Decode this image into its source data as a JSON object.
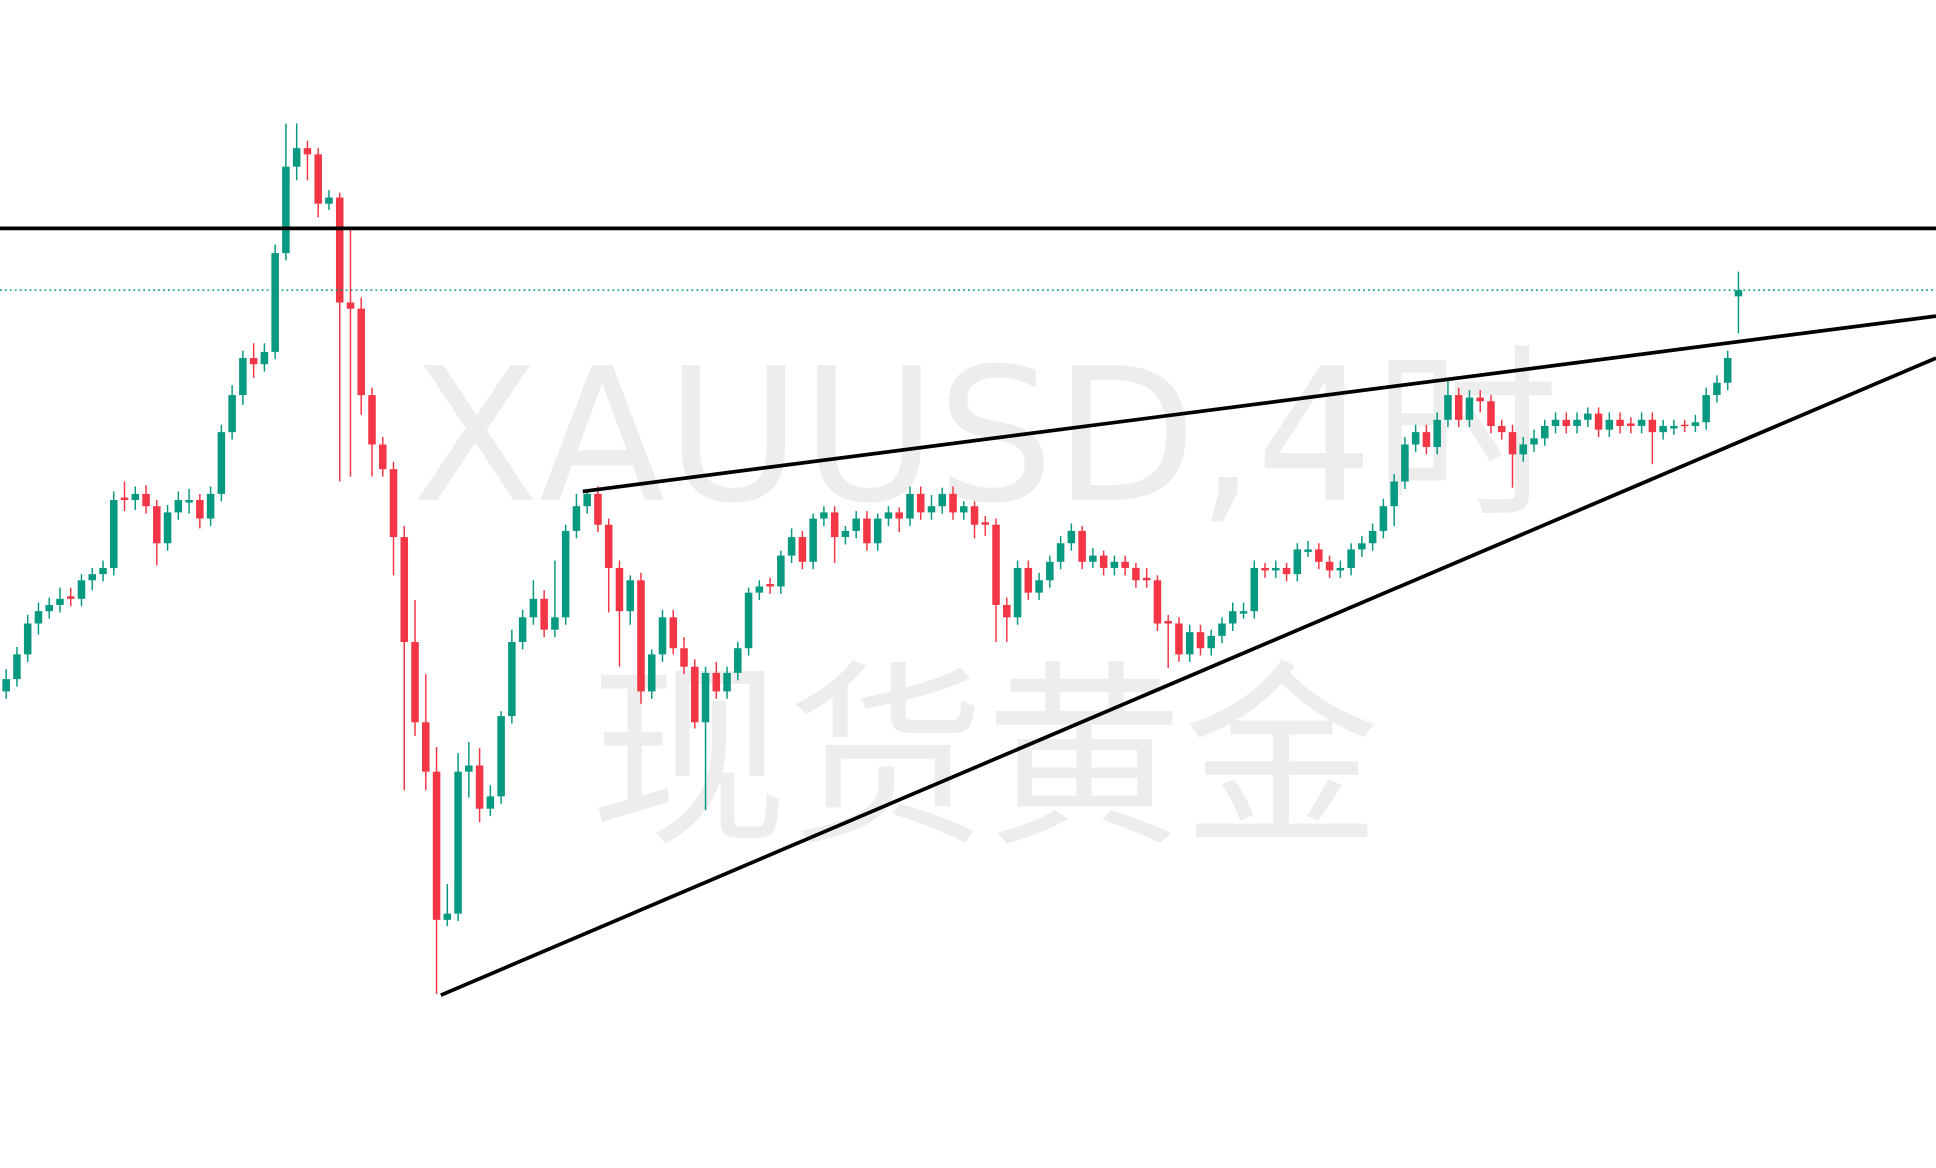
{
  "watermark": {
    "symbol": "XAUUSD,4时",
    "name": "现货黄金"
  },
  "chart_data": {
    "type": "candlestick",
    "ylim": [
      0,
      946
    ],
    "up_color": "#089981",
    "down_color": "#f23645",
    "ohlc": [
      [
        386,
        404,
        380,
        396
      ],
      [
        396,
        422,
        390,
        416
      ],
      [
        416,
        448,
        410,
        441
      ],
      [
        441,
        458,
        432,
        451
      ],
      [
        451,
        462,
        445,
        456
      ],
      [
        456,
        470,
        450,
        461
      ],
      [
        463,
        470,
        455,
        461
      ],
      [
        461,
        481,
        455,
        476
      ],
      [
        476,
        486,
        468,
        481
      ],
      [
        481,
        492,
        475,
        486
      ],
      [
        486,
        548,
        480,
        541
      ],
      [
        543,
        556,
        532,
        541
      ],
      [
        541,
        552,
        533,
        546
      ],
      [
        546,
        553,
        530,
        536
      ],
      [
        536,
        541,
        488,
        506
      ],
      [
        506,
        537,
        500,
        531
      ],
      [
        531,
        548,
        525,
        541
      ],
      [
        539,
        550,
        530,
        541
      ],
      [
        541,
        546,
        518,
        526
      ],
      [
        526,
        552,
        520,
        546
      ],
      [
        546,
        602,
        540,
        596
      ],
      [
        596,
        634,
        590,
        626
      ],
      [
        626,
        662,
        618,
        656
      ],
      [
        656,
        668,
        640,
        651
      ],
      [
        651,
        668,
        645,
        661
      ],
      [
        661,
        748,
        655,
        741
      ],
      [
        741,
        846,
        735,
        811
      ],
      [
        811,
        846,
        800,
        826
      ],
      [
        826,
        832,
        800,
        821
      ],
      [
        821,
        826,
        770,
        781
      ],
      [
        781,
        792,
        776,
        786
      ],
      [
        786,
        790,
        556,
        701
      ],
      [
        701,
        760,
        560,
        696
      ],
      [
        696,
        705,
        610,
        626
      ],
      [
        626,
        632,
        560,
        586
      ],
      [
        586,
        592,
        560,
        566
      ],
      [
        566,
        572,
        480,
        511
      ],
      [
        511,
        520,
        306,
        426
      ],
      [
        426,
        460,
        350,
        361
      ],
      [
        361,
        400,
        306,
        321
      ],
      [
        321,
        341,
        141,
        201
      ],
      [
        201,
        230,
        196,
        206
      ],
      [
        206,
        336,
        200,
        321
      ],
      [
        321,
        345,
        300,
        326
      ],
      [
        326,
        340,
        280,
        291
      ],
      [
        291,
        310,
        285,
        301
      ],
      [
        301,
        370,
        295,
        366
      ],
      [
        366,
        436,
        360,
        426
      ],
      [
        426,
        452,
        420,
        446
      ],
      [
        446,
        476,
        440,
        461
      ],
      [
        461,
        468,
        430,
        436
      ],
      [
        436,
        492,
        430,
        446
      ],
      [
        446,
        521,
        440,
        516
      ],
      [
        516,
        546,
        510,
        536
      ],
      [
        536,
        550,
        530,
        546
      ],
      [
        546,
        552,
        515,
        521
      ],
      [
        521,
        526,
        450,
        486
      ],
      [
        486,
        492,
        406,
        451
      ],
      [
        451,
        480,
        440,
        476
      ],
      [
        476,
        482,
        376,
        386
      ],
      [
        386,
        420,
        380,
        416
      ],
      [
        416,
        452,
        410,
        446
      ],
      [
        446,
        452,
        416,
        421
      ],
      [
        421,
        430,
        400,
        406
      ],
      [
        406,
        412,
        356,
        361
      ],
      [
        361,
        406,
        290,
        401
      ],
      [
        401,
        410,
        380,
        386
      ],
      [
        386,
        406,
        380,
        401
      ],
      [
        401,
        426,
        395,
        421
      ],
      [
        421,
        470,
        415,
        466
      ],
      [
        466,
        476,
        460,
        471
      ],
      [
        473,
        478,
        465,
        471
      ],
      [
        471,
        500,
        465,
        496
      ],
      [
        496,
        518,
        490,
        511
      ],
      [
        511,
        516,
        485,
        491
      ],
      [
        491,
        530,
        485,
        526
      ],
      [
        526,
        536,
        520,
        531
      ],
      [
        531,
        536,
        490,
        511
      ],
      [
        511,
        520,
        505,
        516
      ],
      [
        516,
        532,
        510,
        526
      ],
      [
        526,
        532,
        500,
        506
      ],
      [
        506,
        530,
        500,
        526
      ],
      [
        526,
        536,
        520,
        531
      ],
      [
        531,
        535,
        515,
        526
      ],
      [
        526,
        552,
        520,
        546
      ],
      [
        546,
        552,
        525,
        531
      ],
      [
        531,
        545,
        525,
        536
      ],
      [
        536,
        551,
        530,
        546
      ],
      [
        546,
        552,
        525,
        531
      ],
      [
        531,
        540,
        525,
        536
      ],
      [
        536,
        540,
        510,
        521
      ],
      [
        523,
        528,
        512,
        521
      ],
      [
        521,
        526,
        426,
        456
      ],
      [
        456,
        462,
        426,
        446
      ],
      [
        446,
        492,
        440,
        486
      ],
      [
        486,
        492,
        460,
        466
      ],
      [
        466,
        482,
        460,
        476
      ],
      [
        476,
        496,
        470,
        491
      ],
      [
        491,
        512,
        485,
        506
      ],
      [
        506,
        522,
        500,
        516
      ],
      [
        516,
        520,
        485,
        491
      ],
      [
        491,
        502,
        486,
        496
      ],
      [
        496,
        500,
        480,
        486
      ],
      [
        486,
        496,
        480,
        491
      ],
      [
        491,
        496,
        480,
        486
      ],
      [
        486,
        490,
        470,
        476
      ],
      [
        478,
        486,
        470,
        476
      ],
      [
        476,
        480,
        435,
        441
      ],
      [
        443,
        448,
        405,
        441
      ],
      [
        441,
        446,
        410,
        416
      ],
      [
        416,
        440,
        410,
        434
      ],
      [
        434,
        440,
        415,
        421
      ],
      [
        421,
        436,
        415,
        431
      ],
      [
        431,
        446,
        425,
        441
      ],
      [
        441,
        458,
        435,
        451
      ],
      [
        449,
        458,
        445,
        451
      ],
      [
        451,
        492,
        445,
        486
      ],
      [
        486,
        490,
        478,
        484
      ],
      [
        484,
        492,
        478,
        486
      ],
      [
        486,
        490,
        475,
        481
      ],
      [
        481,
        506,
        475,
        501
      ],
      [
        499,
        508,
        495,
        501
      ],
      [
        501,
        506,
        485,
        491
      ],
      [
        491,
        496,
        478,
        484
      ],
      [
        484,
        492,
        478,
        486
      ],
      [
        486,
        506,
        480,
        501
      ],
      [
        501,
        512,
        495,
        506
      ],
      [
        506,
        522,
        500,
        516
      ],
      [
        516,
        542,
        510,
        536
      ],
      [
        536,
        562,
        520,
        556
      ],
      [
        556,
        592,
        550,
        586
      ],
      [
        586,
        602,
        580,
        596
      ],
      [
        596,
        602,
        578,
        584
      ],
      [
        584,
        612,
        578,
        606
      ],
      [
        606,
        640,
        600,
        626
      ],
      [
        626,
        632,
        600,
        606
      ],
      [
        606,
        630,
        600,
        624
      ],
      [
        624,
        630,
        612,
        621
      ],
      [
        621,
        626,
        595,
        601
      ],
      [
        601,
        606,
        590,
        596
      ],
      [
        596,
        602,
        551,
        578
      ],
      [
        578,
        592,
        572,
        586
      ],
      [
        586,
        598,
        580,
        591
      ],
      [
        591,
        606,
        585,
        601
      ],
      [
        601,
        612,
        595,
        606
      ],
      [
        606,
        612,
        595,
        601
      ],
      [
        601,
        612,
        595,
        606
      ],
      [
        606,
        616,
        600,
        611
      ],
      [
        611,
        616,
        592,
        598
      ],
      [
        598,
        612,
        592,
        606
      ],
      [
        606,
        612,
        595,
        601
      ],
      [
        603,
        608,
        595,
        601
      ],
      [
        601,
        612,
        595,
        606
      ],
      [
        606,
        612,
        570,
        596
      ],
      [
        596,
        606,
        590,
        601
      ],
      [
        599,
        606,
        594,
        601
      ],
      [
        602,
        606,
        596,
        601
      ],
      [
        601,
        610,
        596,
        604
      ],
      [
        604,
        632,
        598,
        626
      ],
      [
        626,
        642,
        620,
        636
      ],
      [
        636,
        662,
        630,
        656
      ],
      [
        706,
        726,
        676,
        711
      ]
    ]
  }
}
